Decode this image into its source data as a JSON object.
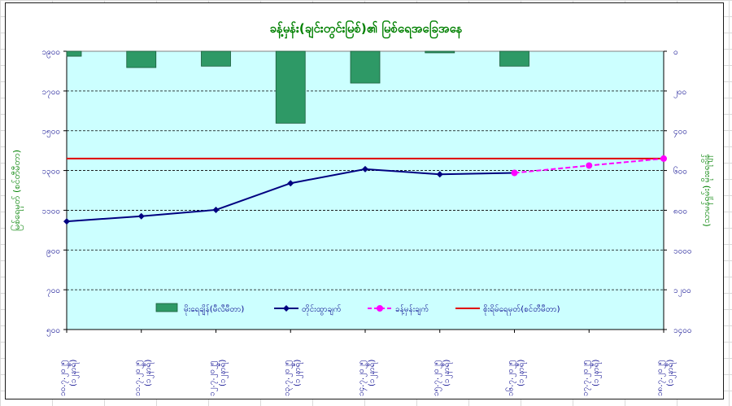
{
  "chart_data": {
    "type": "bar+line",
    "title": "ခန့်မှန်း(ချင်းတွင်းမြစ်)၏ မြစ်ရေအခြေအနေ",
    "categories": [
      "၁၀.၇.၂၀၂၅ (၁၂နာရီ)",
      "၁၁.၇.၂၀၂၅ (၁၂နာရီ)",
      "၁၂.၇.၂၀၂၅ (၁၂နာရီ)",
      "၁၃.၇.၂၀၂၅ (၁၂နာရီ)",
      "၁၄.၇.၂၀၂၅ (၁၂နာရီ)",
      "၁၅.၇.၂၀၂၅ (၁၂နာရီ)",
      "၁၆.၇.၂၀၂၅ (၁၂နာရီ)",
      "၁၇.၇.၂၀၂၅ (၁၂နာရီ)",
      "၁၈.၇.၂၀၂၅ (၁၂နာရီ)"
    ],
    "left_axis": {
      "label": "မြစ်ရေမှတ် (စင်တီမီတာ)",
      "min": 500,
      "max": 1900,
      "step": 200,
      "tick_labels": [
        "၅၀၀",
        "၇၀၀",
        "၉၀၀",
        "၁၁၀၀",
        "၁၃၀၀",
        "၁၅၀၀",
        "၁၇၀၀",
        "၁၉၀၀"
      ]
    },
    "right_axis": {
      "label": "(သာမန်ရှမ်း) မိုးရေချိန်",
      "min": 0,
      "max": 1400,
      "step": 200,
      "inverted": true,
      "tick_labels": [
        "၀",
        "၂၀၀",
        "၄၀၀",
        "၆၀၀",
        "၈၀၀",
        "၁၀၀၀",
        "၁၂၀၀",
        "၁၄၀၀"
      ]
    },
    "series": [
      {
        "name": "မိုးရေချိန်(မီလီမီတာ)",
        "type": "bar",
        "axis": "right",
        "color": "#2e9966",
        "values": [
          25,
          82,
          75,
          362,
          160,
          8,
          75,
          null,
          null
        ]
      },
      {
        "name": "တိုင်းထွာချက်",
        "type": "line",
        "axis": "left",
        "color": "#000080",
        "marker": "diamond",
        "values": [
          1044,
          1070,
          1102,
          1236,
          1307,
          1281,
          1288,
          null,
          null
        ]
      },
      {
        "name": "ခန့်မှန်းချက်",
        "type": "line-dashed",
        "axis": "left",
        "color": "#ff00ff",
        "marker": "circle",
        "values": [
          null,
          null,
          null,
          null,
          null,
          null,
          1288,
          1325,
          1360
        ]
      },
      {
        "name": "စိုးရိမ်ရေမှတ်(စင်တီမီတာ)",
        "type": "hline",
        "axis": "left",
        "color": "#e00000",
        "values": [
          1360,
          1360,
          1360,
          1360,
          1360,
          1360,
          1360,
          1360,
          1360
        ]
      }
    ],
    "grid": "horizontal dashed",
    "legend_position": "bottom inside plot",
    "plot_background": "#ccffff"
  }
}
